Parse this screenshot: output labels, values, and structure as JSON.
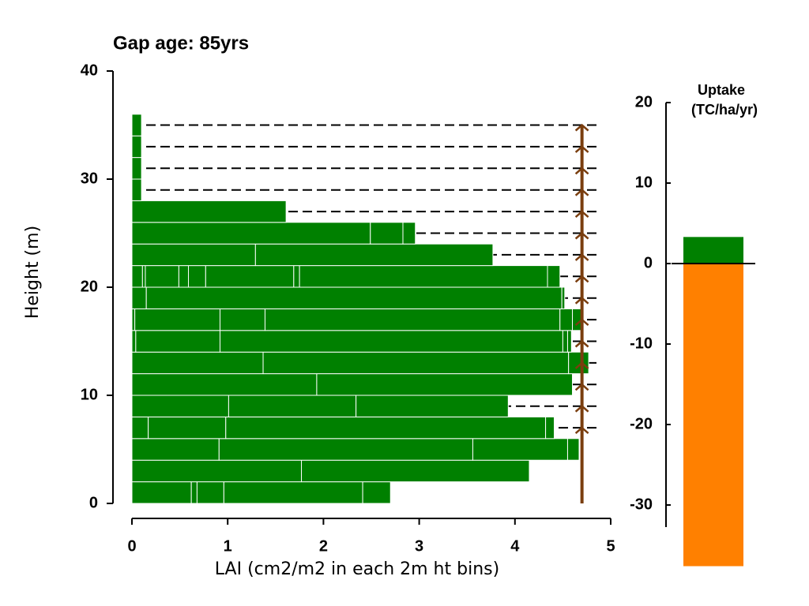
{
  "chart_data": [
    {
      "type": "stacked-hbar",
      "title": "Gap age: 85yrs",
      "xlabel": "LAI (cm2/m2 in each 2m ht bins)",
      "ylabel": "Height (m)",
      "xlim": [
        0,
        5
      ],
      "xticks": [
        0,
        1,
        2,
        3,
        4,
        5
      ],
      "ylim": [
        0,
        40
      ],
      "yticks": [
        0,
        10,
        20,
        30,
        40
      ],
      "color": "#008000",
      "edge_color": "#ffffff",
      "bins": [
        0,
        2,
        4,
        6,
        8,
        10,
        12,
        14,
        16,
        18,
        20,
        22,
        24,
        26,
        28,
        30,
        32,
        34,
        36
      ],
      "segments": [
        [
          0.62,
          0.06,
          0.28,
          1.45,
          0.29
        ],
        [
          1.77,
          2.38
        ],
        [
          0.91,
          2.65,
          0.99,
          0.12
        ],
        [
          0.17,
          0.81,
          3.34,
          0.09
        ],
        [
          1.01,
          1.33,
          1.59
        ],
        [
          1.93,
          2.67
        ],
        [
          1.37,
          3.19,
          0.21
        ],
        [
          0.04,
          0.88,
          3.58,
          0.05,
          0.04
        ],
        [
          0.03,
          0.89,
          0.47,
          3.08,
          0.13,
          0.1
        ],
        [
          0.15,
          4.34,
          0.03
        ],
        [
          0.11,
          0.03,
          0.35,
          0.1,
          0.18,
          0.92,
          0.06,
          2.59,
          0.13
        ],
        [
          1.29,
          2.48
        ],
        [
          2.49,
          0.34,
          0.13
        ],
        [
          1.61
        ],
        [
          0.1
        ],
        [
          0.1
        ],
        [
          0.1
        ],
        [
          0.1
        ]
      ],
      "dash_heights": [
        7,
        9,
        11,
        13,
        15,
        17,
        19,
        21,
        23,
        25,
        27,
        29,
        31,
        33,
        35
      ],
      "dash_end": 4.9,
      "arrow_x": 4.7,
      "arrow_color": "#7a3e0f"
    },
    {
      "type": "bar",
      "title": "Uptake",
      "subtitle": "(TC/ha/yr)",
      "y2lim": [
        -30,
        20
      ],
      "y2ticks": [
        -30,
        -20,
        -10,
        0,
        10,
        20
      ],
      "values": [
        3.3,
        -37.6
      ],
      "colors": [
        "#008000",
        "#ff8000"
      ]
    }
  ]
}
